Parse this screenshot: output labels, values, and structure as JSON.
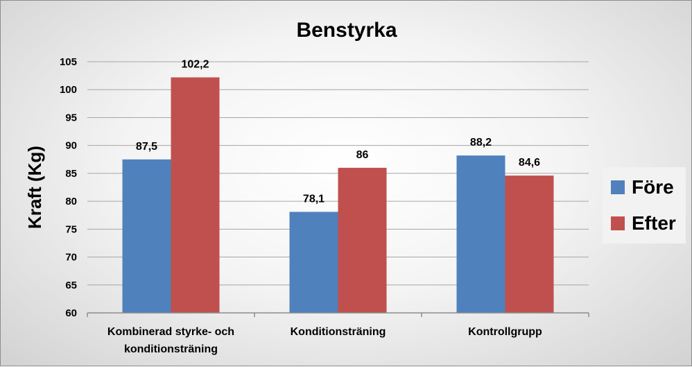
{
  "chart_data": {
    "type": "bar",
    "title": "Benstyrka",
    "ylabel": "Kraft (Kg)",
    "xlabel": "",
    "ylim": [
      60,
      105
    ],
    "yticks": [
      60,
      65,
      70,
      75,
      80,
      85,
      90,
      95,
      100,
      105
    ],
    "categories": [
      [
        "Kombinerad styrke- och",
        "konditionsträning"
      ],
      [
        "Konditionsträning"
      ],
      [
        "Kontrollgrupp"
      ]
    ],
    "series": [
      {
        "name": "Före",
        "color": "#4f81bd",
        "values": [
          87.5,
          78.1,
          88.2
        ],
        "labels": [
          "87,5",
          "78,1",
          "88,2"
        ]
      },
      {
        "name": "Efter",
        "color": "#c0504d",
        "values": [
          102.2,
          86,
          84.6
        ],
        "labels": [
          "102,2",
          "86",
          "84,6"
        ]
      }
    ],
    "grid": true,
    "legend_position": "right"
  }
}
